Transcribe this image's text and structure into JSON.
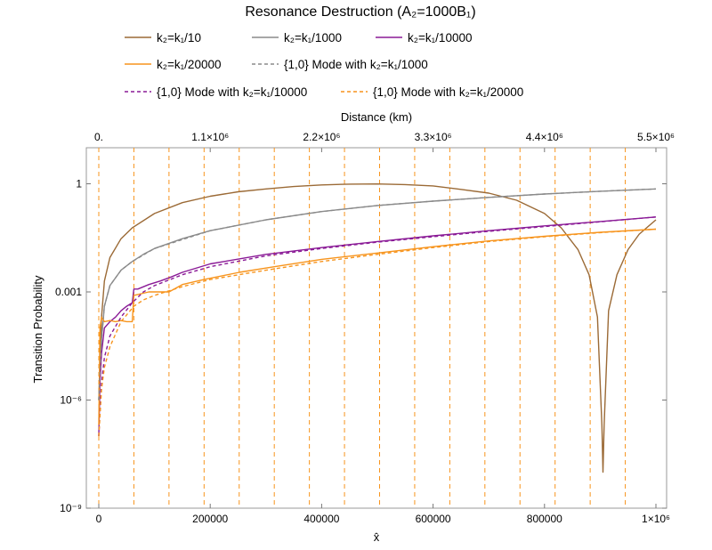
{
  "chart_data": {
    "type": "line",
    "title": "Resonance Destruction (A₂=1000B₁)",
    "xlabel": "x̂",
    "ylabel": "Transition Probability",
    "top_xlabel": "Distance (km)",
    "xlim": [
      0,
      1000000
    ],
    "ylim": [
      1e-09,
      10
    ],
    "y_scale": "log",
    "x_ticks": [
      {
        "value": 0,
        "label": "0"
      },
      {
        "value": 200000,
        "label": "200000"
      },
      {
        "value": 400000,
        "label": "400000"
      },
      {
        "value": 600000,
        "label": "600000"
      },
      {
        "value": 800000,
        "label": "800000"
      },
      {
        "value": 1000000,
        "label": "1×10⁶"
      }
    ],
    "top_ticks": [
      {
        "value": 0,
        "label": "0."
      },
      {
        "value": 1100000,
        "label": "1.1×10⁶"
      },
      {
        "value": 2200000,
        "label": "2.2×10⁶"
      },
      {
        "value": 3300000,
        "label": "3.3×10⁶"
      },
      {
        "value": 4400000,
        "label": "4.4×10⁶"
      },
      {
        "value": 5500000,
        "label": "5.5×10⁶"
      }
    ],
    "y_ticks": [
      {
        "value": 1,
        "label": "1"
      },
      {
        "value": 0.001,
        "label": "0.001"
      },
      {
        "value": 1e-06,
        "label": "10⁻⁶"
      },
      {
        "value": 1e-09,
        "label": "10⁻⁹"
      }
    ],
    "legend": [
      {
        "label": "k₂=k₁/10",
        "color": "#9b6a36",
        "dashed": false
      },
      {
        "label": "k₂=k₁/1000",
        "color": "#8a8a8a",
        "dashed": false
      },
      {
        "label": "k₂=k₁/10000",
        "color": "#8a1a96",
        "dashed": false
      },
      {
        "label": "k₂=k₁/20000",
        "color": "#f7941d",
        "dashed": false
      },
      {
        "label": "{1,0} Mode with k₂=k₁/1000",
        "color": "#8a8a8a",
        "dashed": true
      },
      {
        "label": "{1,0} Mode with k₂=k₁/10000",
        "color": "#8a1a96",
        "dashed": true
      },
      {
        "label": "{1,0} Mode with k₂=k₁/20000",
        "color": "#f7941d",
        "dashed": true
      }
    ],
    "vertical_dashed_lines": {
      "color": "#f7941d",
      "x": [
        0,
        63000,
        126000,
        189000,
        252000,
        315000,
        378000,
        441000,
        504000,
        567000,
        630000,
        693000,
        756000,
        819000,
        882000,
        945000
      ]
    },
    "series": [
      {
        "name": "k₂=k₁/10",
        "color": "#9b6a36",
        "dashed": false,
        "x": [
          0,
          2000,
          5000,
          10000,
          20000,
          40000,
          60000,
          100000,
          150000,
          200000,
          250000,
          300000,
          350000,
          400000,
          450000,
          500000,
          550000,
          600000,
          650000,
          700000,
          750000,
          800000,
          830000,
          860000,
          880000,
          895000,
          903000,
          905000,
          907000,
          915000,
          930000,
          950000,
          970000,
          1000000
        ],
        "y": [
          1e-06,
          1e-05,
          0.0002,
          0.002,
          0.009,
          0.03,
          0.06,
          0.15,
          0.3,
          0.45,
          0.6,
          0.72,
          0.84,
          0.93,
          0.98,
          0.99,
          0.95,
          0.87,
          0.7,
          0.55,
          0.35,
          0.15,
          0.06,
          0.015,
          0.003,
          0.0002,
          2e-07,
          1e-08,
          2e-07,
          0.0003,
          0.003,
          0.015,
          0.04,
          0.1
        ]
      },
      {
        "name": "k₂=k₁/1000",
        "color": "#8a8a8a",
        "dashed": false,
        "x": [
          0,
          5000,
          10000,
          20000,
          40000,
          60000,
          80000,
          100000,
          150000,
          200000,
          300000,
          400000,
          500000,
          600000,
          700000,
          800000,
          900000,
          1000000
        ],
        "y": [
          1e-06,
          5e-05,
          0.0004,
          0.0015,
          0.004,
          0.007,
          0.011,
          0.016,
          0.03,
          0.05,
          0.1,
          0.17,
          0.25,
          0.33,
          0.42,
          0.52,
          0.62,
          0.72
        ]
      },
      {
        "name": "k₂=k₁/10000",
        "color": "#8a1a96",
        "dashed": false,
        "x": [
          0,
          2000,
          5000,
          10000,
          20000,
          30000,
          40000,
          50000,
          60000,
          63000,
          70000,
          90000,
          110000,
          130000,
          150000,
          200000,
          300000,
          400000,
          500000,
          600000,
          700000,
          800000,
          900000,
          1000000
        ],
        "y": [
          1e-07,
          3e-06,
          2e-05,
          0.0001,
          0.00015,
          0.0002,
          0.0003,
          0.0004,
          0.0005,
          0.0012,
          0.0012,
          0.0016,
          0.002,
          0.0026,
          0.0035,
          0.006,
          0.011,
          0.017,
          0.025,
          0.036,
          0.05,
          0.068,
          0.09,
          0.12
        ]
      },
      {
        "name": "k₂=k₁/20000",
        "color": "#f7941d",
        "dashed": false,
        "x": [
          0,
          2000,
          5000,
          10000,
          20000,
          30000,
          40000,
          50000,
          60000,
          63000,
          90000,
          126000,
          150000,
          189000,
          252000,
          315000,
          400000,
          500000,
          600000,
          700000,
          800000,
          900000,
          1000000
        ],
        "y": [
          2e-07,
          0.0001,
          0.0002,
          0.00015,
          0.00016,
          0.00015,
          0.00016,
          0.00015,
          0.00015,
          0.0008,
          0.001,
          0.001,
          0.0016,
          0.0022,
          0.0035,
          0.005,
          0.008,
          0.012,
          0.018,
          0.026,
          0.035,
          0.045,
          0.055
        ]
      },
      {
        "name": "{1,0} Mode with k₂=k₁/1000",
        "color": "#8a8a8a",
        "dashed": true,
        "x": [
          0,
          5000,
          10000,
          20000,
          40000,
          60000,
          100000,
          200000,
          300000,
          400000,
          500000,
          600000,
          700000,
          800000,
          900000,
          1000000
        ],
        "y": [
          1e-06,
          5e-05,
          0.0004,
          0.0015,
          0.004,
          0.007,
          0.016,
          0.05,
          0.1,
          0.17,
          0.25,
          0.33,
          0.42,
          0.52,
          0.62,
          0.72
        ]
      },
      {
        "name": "{1,0} Mode with k₂=k₁/10000",
        "color": "#8a1a96",
        "dashed": true,
        "x": [
          0,
          5000,
          10000,
          20000,
          40000,
          60000,
          80000,
          100000,
          150000,
          200000,
          300000,
          400000,
          500000,
          600000,
          700000,
          800000,
          900000,
          1000000
        ],
        "y": [
          1e-07,
          3e-06,
          1.5e-05,
          6e-05,
          0.0002,
          0.0005,
          0.001,
          0.0015,
          0.003,
          0.005,
          0.01,
          0.016,
          0.024,
          0.034,
          0.048,
          0.065,
          0.088,
          0.12
        ]
      },
      {
        "name": "{1,0} Mode with k₂=k₁/20000",
        "color": "#f7941d",
        "dashed": true,
        "x": [
          0,
          5000,
          10000,
          20000,
          40000,
          63000,
          80000,
          100000,
          150000,
          200000,
          300000,
          400000,
          500000,
          600000,
          700000,
          800000,
          900000,
          1000000
        ],
        "y": [
          1e-07,
          2e-06,
          8e-06,
          3e-05,
          0.00015,
          0.0004,
          0.0006,
          0.0008,
          0.0014,
          0.0022,
          0.004,
          0.007,
          0.011,
          0.017,
          0.025,
          0.034,
          0.044,
          0.055
        ]
      }
    ]
  }
}
